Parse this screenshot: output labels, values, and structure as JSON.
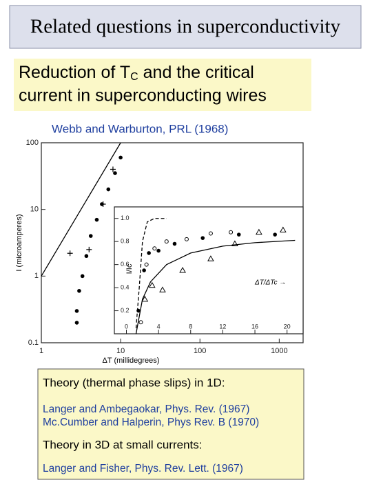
{
  "header": {
    "title": "Related questions in superconductivity"
  },
  "subtitle_box": {
    "line1_prefix": "Reduction of T",
    "line1_sub": "C",
    "line1_suffix": " and the critical",
    "line2": "current in superconducting wires"
  },
  "citation": "Webb and Warburton, PRL (1968)",
  "chart_data": [
    {
      "type": "scatter",
      "log_x": true,
      "log_y": true,
      "xlabel": "ΔT (millidegrees)",
      "ylabel": "I (microamperes)",
      "xlim": [
        1,
        2000
      ],
      "ylim": [
        0.1,
        100
      ],
      "xticks": [
        1,
        10,
        100,
        1000
      ],
      "yticks": [
        0.1,
        1,
        10,
        100
      ],
      "series": [
        {
          "marker": "line",
          "color": "#000000",
          "x": [
            1,
            10
          ],
          "values": [
            1,
            100
          ]
        },
        {
          "marker": "circle-filled",
          "color": "#000000",
          "x": [
            2.8,
            2.8,
            3.0,
            3.3,
            3.7,
            4.2,
            5.0,
            5.8,
            7.0,
            8.5,
            10
          ],
          "values": [
            0.2,
            0.3,
            0.6,
            1,
            2,
            4,
            7,
            12,
            20,
            35,
            60
          ]
        },
        {
          "marker": "cross",
          "color": "#000000",
          "x": [
            2.3,
            4.0,
            6.0,
            8.0
          ],
          "values": [
            2.2,
            2.5,
            12,
            40
          ]
        }
      ]
    },
    {
      "type": "scatter",
      "log_x": false,
      "log_y": false,
      "ylabel": "I/Ic",
      "annotation": "ΔT/ΔTc →",
      "xlim": [
        -1.5,
        22
      ],
      "ylim": [
        0,
        1.1
      ],
      "xticks": [
        0,
        4,
        8,
        12,
        16,
        20
      ],
      "yticks": [
        0.2,
        0.4,
        0.6,
        0.8,
        {
          "value": 1,
          "label": "1.0"
        }
      ],
      "series": [
        {
          "marker": "dashed",
          "color": "#000000",
          "x": [
            1.2,
            1.6,
            2.0,
            2.6,
            3.5,
            5
          ],
          "values": [
            0.05,
            0.4,
            0.8,
            0.97,
            1.0,
            1.0
          ]
        },
        {
          "marker": "line",
          "color": "#000000",
          "x": [
            1.2,
            2,
            3,
            5,
            8,
            12,
            16,
            21
          ],
          "values": [
            0,
            0.3,
            0.45,
            0.6,
            0.7,
            0.76,
            0.79,
            0.81
          ]
        },
        {
          "marker": "circle-filled",
          "color": "#000000",
          "x": [
            1.5,
            2.2,
            2.8,
            4,
            6,
            9.5,
            14,
            18.5
          ],
          "values": [
            0.2,
            0.55,
            0.7,
            0.72,
            0.78,
            0.83,
            0.86,
            0.86
          ]
        },
        {
          "marker": "circle-open",
          "color": "#000000",
          "x": [
            1.8,
            2.5,
            3.5,
            5,
            7.5,
            10.5,
            13
          ],
          "values": [
            0.1,
            0.6,
            0.74,
            0.8,
            0.82,
            0.87,
            0.88
          ]
        },
        {
          "marker": "triangle-open",
          "color": "#000000",
          "x": [
            2.3,
            3.2,
            4.5,
            7,
            10.5,
            13.5,
            16.5,
            19.5
          ],
          "values": [
            0.3,
            0.42,
            0.38,
            0.55,
            0.65,
            0.78,
            0.88,
            0.9
          ]
        }
      ]
    }
  ],
  "theory_box": {
    "heading1": "Theory (thermal phase slips) in 1D:",
    "refs1": [
      "Langer and Ambegaokar, Phys. Rev. (1967)",
      "Mc.Cumber and Halperin, Phys Rev. B  (1970)"
    ],
    "heading2": "Theory in 3D at small currents:",
    "refs2": [
      "Langer and Fisher, Phys. Rev. Lett. (1967)"
    ]
  }
}
